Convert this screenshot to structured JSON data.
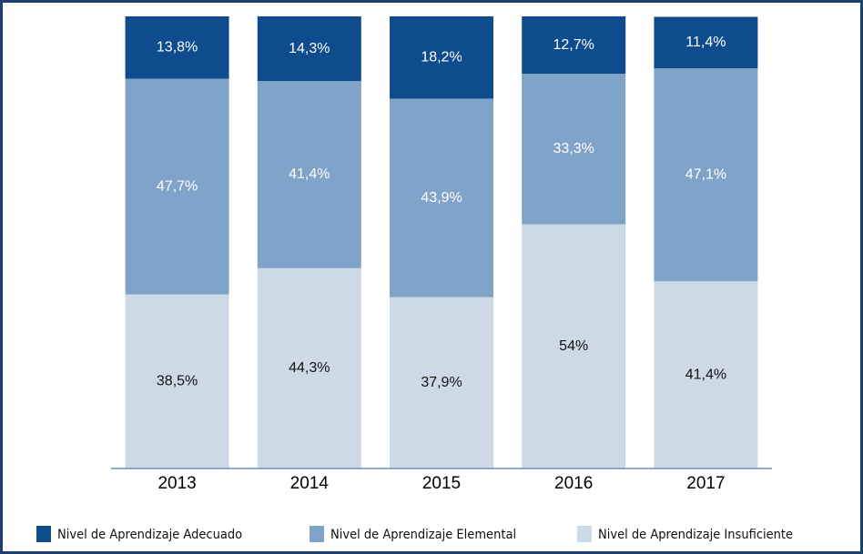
{
  "chart_data": {
    "type": "stacked-bar",
    "categories": [
      "2013",
      "2014",
      "2015",
      "2016",
      "2017"
    ],
    "ylim": [
      0,
      100
    ],
    "series": [
      {
        "name": "Nivel de Aprendizaje Adecuado",
        "color": "#0f4c8e",
        "values": [
          13.8,
          14.3,
          18.2,
          12.7,
          11.4
        ],
        "value_labels": [
          "13,8%",
          "14,3%",
          "18,2%",
          "12,7%",
          "11,4%"
        ]
      },
      {
        "name": "Nivel de Aprendizaje Elemental",
        "color": "#80a4c9",
        "values": [
          47.7,
          41.4,
          43.9,
          33.3,
          47.1
        ],
        "value_labels": [
          "47,7%",
          "41,4%",
          "43,9%",
          "33,3%",
          "47,1%"
        ]
      },
      {
        "name": "Nivel de Aprendizaje Insuficiente",
        "color": "#cdd9e7",
        "values": [
          38.5,
          44.3,
          37.9,
          54,
          41.4
        ],
        "value_labels": [
          "38,5%",
          "44,3%",
          "37,9%",
          "54%",
          "41,4%"
        ]
      }
    ]
  }
}
